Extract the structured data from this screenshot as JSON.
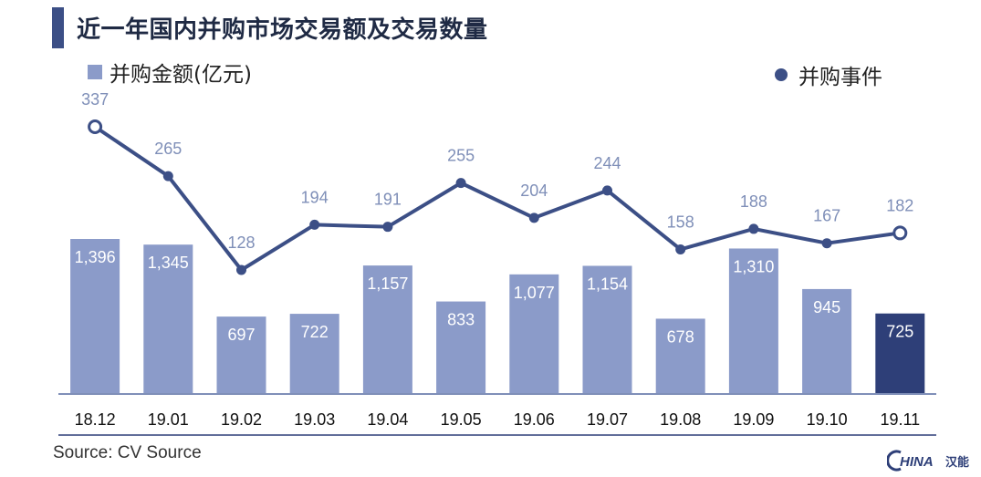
{
  "header": {
    "title": "近一年国内并购市场交易额及交易数量"
  },
  "legend": {
    "bar_label": "并购金额(亿元)",
    "line_label": "并购事件"
  },
  "footer": {
    "source": "Source: CV Source"
  },
  "logo": {
    "text": "HINA",
    "mark": "汉能"
  },
  "colors": {
    "bar": "#8b9bc9",
    "bar_highlight": "#2e3f78",
    "line": "#3c4f86",
    "line_label": "#7f8fb8",
    "axis": "#7f8fb8"
  },
  "chart_data": {
    "type": "bar",
    "categories": [
      "18.12",
      "19.01",
      "19.02",
      "19.03",
      "19.04",
      "19.05",
      "19.06",
      "19.07",
      "19.08",
      "19.09",
      "19.10",
      "19.11"
    ],
    "series": [
      {
        "name": "并购金额(亿元)",
        "type": "bar",
        "values": [
          1396,
          1345,
          697,
          722,
          1157,
          833,
          1077,
          1154,
          678,
          1310,
          945,
          725
        ],
        "labels": [
          "1,396",
          "1,345",
          "697",
          "722",
          "1,157",
          "833",
          "1,077",
          "1,154",
          "678",
          "1,310",
          "945",
          "725"
        ]
      },
      {
        "name": "并购事件",
        "type": "line",
        "values": [
          337,
          265,
          128,
          194,
          191,
          255,
          204,
          244,
          158,
          188,
          167,
          182
        ]
      }
    ],
    "grid": false,
    "legend_position": "top"
  }
}
